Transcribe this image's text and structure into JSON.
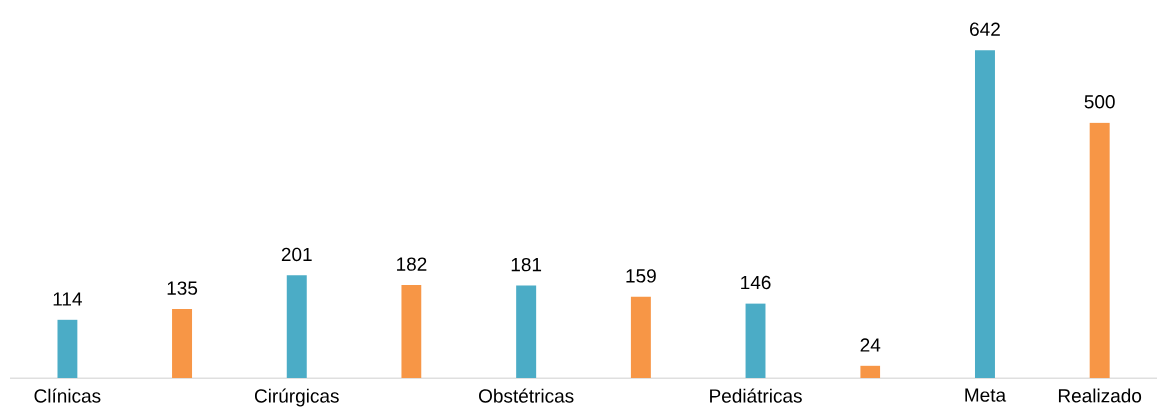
{
  "chart_data": {
    "type": "bar",
    "categories": [
      "Clínicas",
      null,
      "Cirúrgicas",
      null,
      "Obstétricas",
      null,
      "Pediátricas",
      null,
      "Meta",
      "Realizado"
    ],
    "values": [
      114,
      135,
      201,
      182,
      181,
      159,
      146,
      24,
      642,
      500
    ],
    "colors": [
      "#4bacc6",
      "#f79646",
      "#4bacc6",
      "#f79646",
      "#4bacc6",
      "#f79646",
      "#4bacc6",
      "#f79646",
      "#4bacc6",
      "#f79646"
    ],
    "data_labels": true
  }
}
